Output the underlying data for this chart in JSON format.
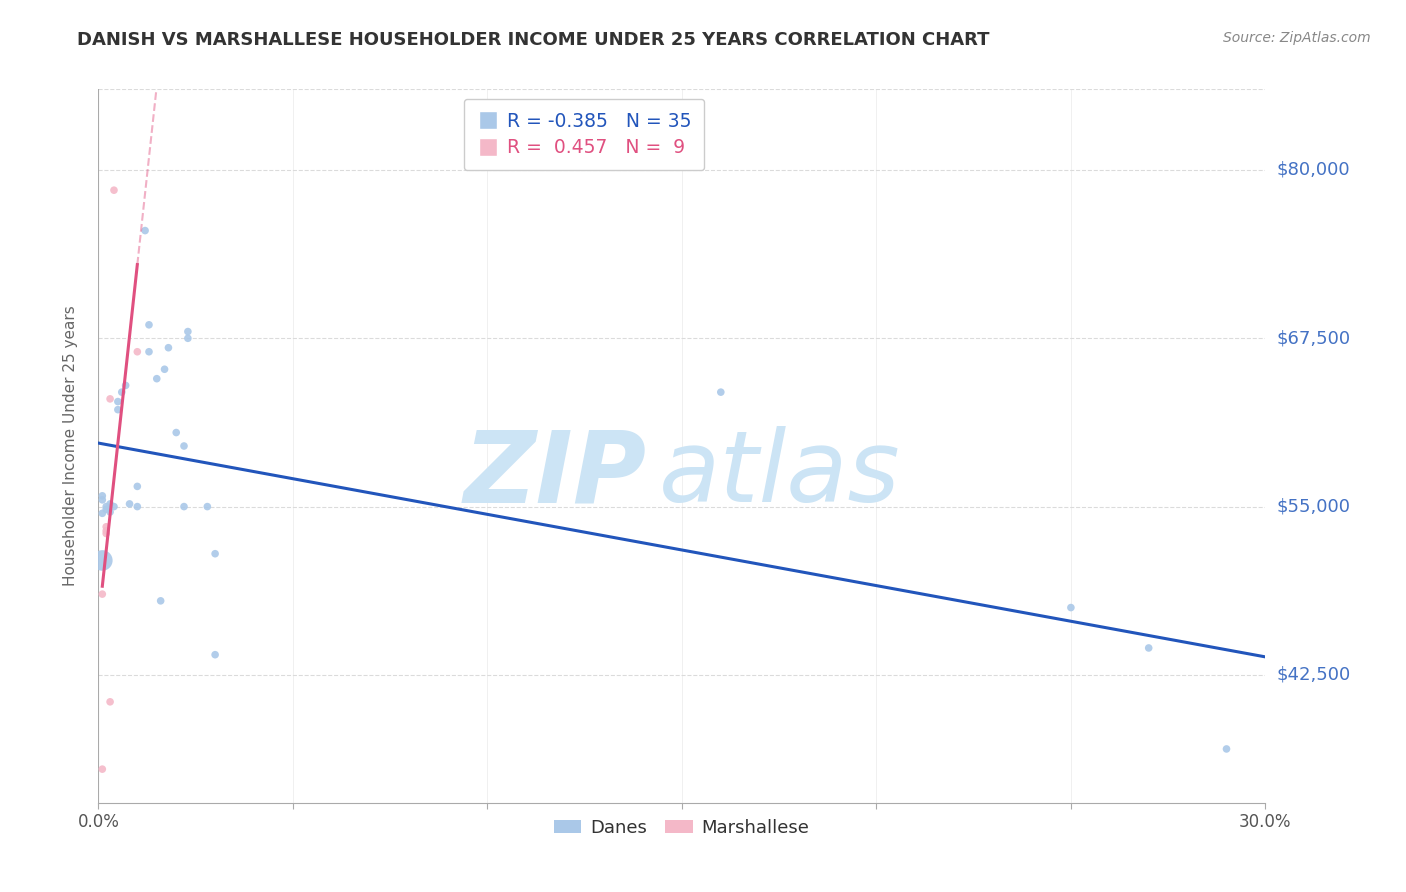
{
  "title": "DANISH VS MARSHALLESE HOUSEHOLDER INCOME UNDER 25 YEARS CORRELATION CHART",
  "source": "Source: ZipAtlas.com",
  "ylabel": "Householder Income Under 25 years",
  "yticks": [
    42500,
    55000,
    67500,
    80000
  ],
  "ytick_labels": [
    "$42,500",
    "$55,000",
    "$67,500",
    "$80,000"
  ],
  "xmin": 0.0,
  "xmax": 0.3,
  "ymin": 33000,
  "ymax": 86000,
  "danes_R": "-0.385",
  "danes_N": "35",
  "marshallese_R": " 0.457",
  "marshallese_N": " 9",
  "danes_color": "#aac8e8",
  "danes_line_color": "#2255bb",
  "marshallese_color": "#f4b8c8",
  "marshallese_line_color": "#e05080",
  "danes_points": [
    [
      0.001,
      55800
    ],
    [
      0.001,
      55500
    ],
    [
      0.001,
      54500
    ],
    [
      0.001,
      51000
    ],
    [
      0.002,
      55000
    ],
    [
      0.002,
      54800
    ],
    [
      0.003,
      55200
    ],
    [
      0.003,
      54600
    ],
    [
      0.004,
      55000
    ],
    [
      0.005,
      62800
    ],
    [
      0.005,
      62200
    ],
    [
      0.006,
      63500
    ],
    [
      0.007,
      64000
    ],
    [
      0.008,
      55200
    ],
    [
      0.01,
      56500
    ],
    [
      0.01,
      55000
    ],
    [
      0.012,
      75500
    ],
    [
      0.013,
      68500
    ],
    [
      0.013,
      66500
    ],
    [
      0.015,
      64500
    ],
    [
      0.016,
      48000
    ],
    [
      0.017,
      65200
    ],
    [
      0.018,
      66800
    ],
    [
      0.02,
      60500
    ],
    [
      0.022,
      59500
    ],
    [
      0.022,
      55000
    ],
    [
      0.023,
      67500
    ],
    [
      0.023,
      68000
    ],
    [
      0.028,
      55000
    ],
    [
      0.03,
      51500
    ],
    [
      0.03,
      44000
    ],
    [
      0.16,
      63500
    ],
    [
      0.25,
      47500
    ],
    [
      0.27,
      44500
    ],
    [
      0.29,
      37000
    ]
  ],
  "danes_sizes": [
    30,
    30,
    30,
    220,
    30,
    30,
    30,
    30,
    30,
    30,
    30,
    30,
    30,
    30,
    30,
    30,
    30,
    30,
    30,
    30,
    30,
    30,
    30,
    30,
    30,
    30,
    30,
    30,
    30,
    30,
    30,
    30,
    30,
    30,
    30
  ],
  "marshallese_points": [
    [
      0.001,
      35500
    ],
    [
      0.001,
      48500
    ],
    [
      0.002,
      53500
    ],
    [
      0.002,
      53000
    ],
    [
      0.002,
      53200
    ],
    [
      0.003,
      40500
    ],
    [
      0.003,
      63000
    ],
    [
      0.004,
      78500
    ],
    [
      0.01,
      66500
    ]
  ],
  "marshallese_sizes": [
    30,
    30,
    30,
    30,
    30,
    30,
    30,
    30,
    30
  ],
  "background_color": "#ffffff",
  "grid_color": "#cccccc",
  "watermark_line1": "ZIP",
  "watermark_line2": "atlas",
  "watermark_color": "#cce4f5"
}
